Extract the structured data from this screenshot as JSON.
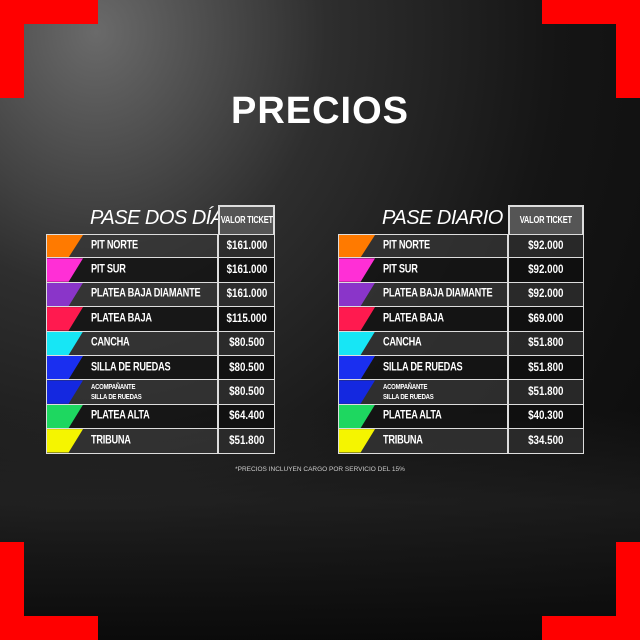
{
  "title": "PRECIOS",
  "value_header": "VALOR TICKET",
  "colors": {
    "accent": "#ff0000"
  },
  "tables": [
    {
      "name": "PASE DOS DÍAS",
      "rows": [
        {
          "label": "PIT NORTE",
          "price": "$161.000",
          "color": "#ff7a00"
        },
        {
          "label": "PIT SUR",
          "price": "$161.000",
          "color": "#ff2fd6"
        },
        {
          "label": "PLATEA BAJA DIAMANTE",
          "price": "$161.000",
          "color": "#8a35c9"
        },
        {
          "label": "PLATEA BAJA",
          "price": "$115.000",
          "color": "#ff1a4f"
        },
        {
          "label": "CANCHA",
          "price": "$80.500",
          "color": "#17e6f5"
        },
        {
          "label": "SILLA DE RUEDAS",
          "price": "$80.500",
          "color": "#1a2ff0"
        },
        {
          "label": "ACOMPAÑANTE",
          "label2": "SILLA DE RUEDAS",
          "price": "$80.500",
          "color": "#1428e0"
        },
        {
          "label": "PLATEA ALTA",
          "price": "$64.400",
          "color": "#1ed760"
        },
        {
          "label": "TRIBUNA",
          "price": "$51.800",
          "color": "#f5f500"
        }
      ]
    },
    {
      "name": "PASE DIARIO",
      "rows": [
        {
          "label": "PIT NORTE",
          "price": "$92.000",
          "color": "#ff7a00"
        },
        {
          "label": "PIT SUR",
          "price": "$92.000",
          "color": "#ff2fd6"
        },
        {
          "label": "PLATEA BAJA DIAMANTE",
          "price": "$92.000",
          "color": "#8a35c9"
        },
        {
          "label": "PLATEA BAJA",
          "price": "$69.000",
          "color": "#ff1a4f"
        },
        {
          "label": "CANCHA",
          "price": "$51.800",
          "color": "#17e6f5"
        },
        {
          "label": "SILLA DE RUEDAS",
          "price": "$51.800",
          "color": "#1a2ff0"
        },
        {
          "label": "ACOMPAÑANTE",
          "label2": "SILLA DE RUEDAS",
          "price": "$51.800",
          "color": "#1428e0"
        },
        {
          "label": "PLATEA ALTA",
          "price": "$40.300",
          "color": "#1ed760"
        },
        {
          "label": "TRIBUNA",
          "price": "$34.500",
          "color": "#f5f500"
        }
      ]
    }
  ],
  "note": "*PRECIOS INCLUYEN CARGO POR SERVICIO DEL 15%"
}
